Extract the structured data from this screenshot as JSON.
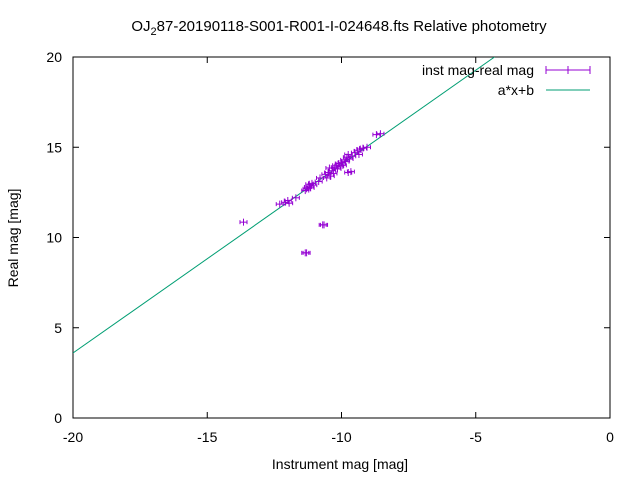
{
  "chart_data": {
    "type": "scatter",
    "title_prefix": "OJ",
    "title_sub": "2",
    "title_suffix": "87-20190118-S001-R001-I-024648.fts Relative photometry",
    "xlabel": "Instrument mag [mag]",
    "ylabel": "Real mag [mag]",
    "xlim": [
      -20,
      0
    ],
    "ylim": [
      0,
      20
    ],
    "xticks": [
      -20,
      -15,
      -10,
      -5,
      0
    ],
    "yticks": [
      0,
      5,
      10,
      15,
      20
    ],
    "grid": false,
    "legend_position": "top-right",
    "colors": {
      "points": "#9400d3",
      "fit": "#009e73"
    },
    "series": [
      {
        "name": "inst mag-real mag",
        "type": "points-errorbars",
        "points": [
          [
            -13.65,
            10.85
          ],
          [
            -12.3,
            11.85
          ],
          [
            -12.1,
            11.95
          ],
          [
            -12.0,
            12.05
          ],
          [
            -11.95,
            11.9
          ],
          [
            -11.7,
            12.2
          ],
          [
            -11.35,
            12.6
          ],
          [
            -11.3,
            12.7
          ],
          [
            -11.25,
            12.8
          ],
          [
            -11.2,
            12.95
          ],
          [
            -11.15,
            12.75
          ],
          [
            -11.1,
            13.0
          ],
          [
            -11.05,
            12.9
          ],
          [
            -10.85,
            13.1
          ],
          [
            -10.8,
            13.3
          ],
          [
            -10.6,
            13.5
          ],
          [
            -10.55,
            13.3
          ],
          [
            -10.5,
            13.6
          ],
          [
            -10.45,
            13.85
          ],
          [
            -10.4,
            13.4
          ],
          [
            -10.35,
            13.7
          ],
          [
            -10.3,
            13.55
          ],
          [
            -10.25,
            13.9
          ],
          [
            -10.2,
            14.0
          ],
          [
            -10.15,
            13.8
          ],
          [
            -10.1,
            14.1
          ],
          [
            -10.05,
            13.95
          ],
          [
            -10.0,
            14.15
          ],
          [
            -9.95,
            14.0
          ],
          [
            -9.9,
            14.3
          ],
          [
            -9.85,
            14.2
          ],
          [
            -9.8,
            14.45
          ],
          [
            -9.75,
            14.6
          ],
          [
            -9.7,
            14.35
          ],
          [
            -9.6,
            14.5
          ],
          [
            -9.5,
            14.7
          ],
          [
            -9.4,
            14.8
          ],
          [
            -9.35,
            14.6
          ],
          [
            -9.3,
            14.9
          ],
          [
            -9.2,
            14.95
          ],
          [
            -9.05,
            15.0
          ],
          [
            -8.7,
            15.7
          ],
          [
            -8.55,
            15.75
          ],
          [
            -9.75,
            13.6
          ],
          [
            -9.65,
            13.65
          ],
          [
            -10.7,
            10.7
          ],
          [
            -10.65,
            10.7
          ],
          [
            -11.35,
            9.15
          ],
          [
            -11.3,
            9.15
          ]
        ]
      },
      {
        "name": "a*x+b",
        "type": "line",
        "x": [
          -20,
          -4.3
        ],
        "y": [
          3.6,
          20
        ]
      }
    ]
  }
}
